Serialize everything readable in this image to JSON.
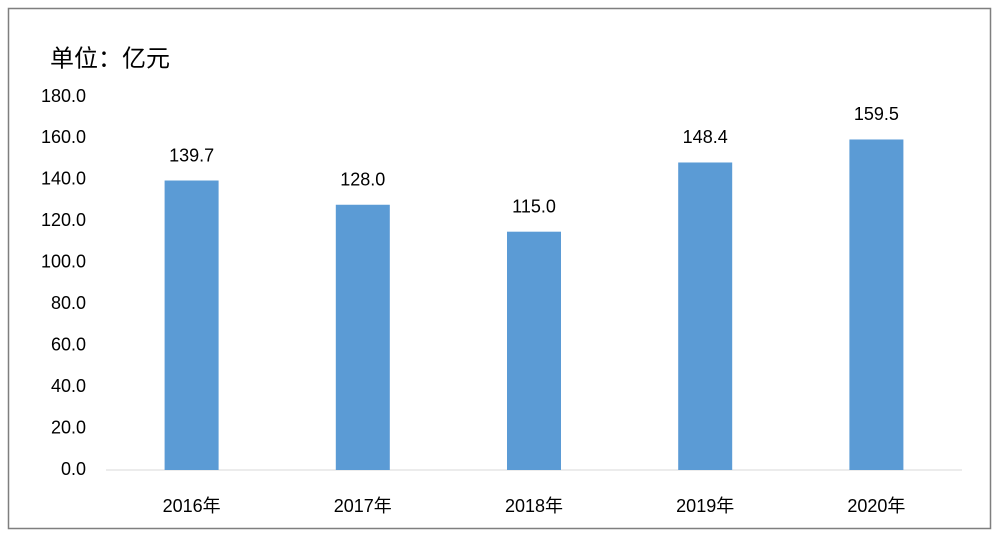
{
  "chart_data": {
    "type": "bar",
    "unit_label": "单位：亿元",
    "categories": [
      "2016年",
      "2017年",
      "2018年",
      "2019年",
      "2020年"
    ],
    "values": [
      139.7,
      128.0,
      115.0,
      148.4,
      159.5
    ],
    "value_labels": [
      "139.7",
      "128.0",
      "115.0",
      "148.4",
      "159.5"
    ],
    "color": "#5b9bd5",
    "ylim": [
      0,
      180
    ],
    "yticks": [
      {
        "value": 0,
        "label": "0.0"
      },
      {
        "value": 20,
        "label": "20.0"
      },
      {
        "value": 40,
        "label": "40.0"
      },
      {
        "value": 60,
        "label": "60.0"
      },
      {
        "value": 80,
        "label": "80.0"
      },
      {
        "value": 100,
        "label": "100.0"
      },
      {
        "value": 120,
        "label": "120.0"
      },
      {
        "value": 140,
        "label": "140.0"
      },
      {
        "value": 160,
        "label": "160.0"
      },
      {
        "value": 180,
        "label": "180.0"
      }
    ],
    "grid": false
  }
}
